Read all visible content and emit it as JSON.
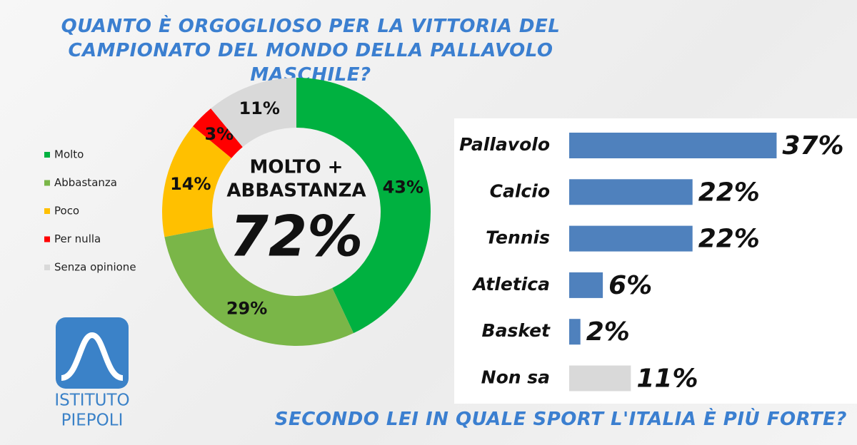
{
  "chart_data": [
    {
      "type": "pie",
      "title": "QUANTO È ORGOGLIOSO PER LA VITTORIA DEL CAMPIONATO DEL MONDO DELLA PALLAVOLO MASCHILE?",
      "categories": [
        "Molto",
        "Abbastanza",
        "Poco",
        "Per nulla",
        "Senza opinione"
      ],
      "values": [
        43,
        29,
        14,
        3,
        11
      ],
      "value_labels": [
        "43%",
        "29%",
        "14%",
        "3%",
        "11%"
      ],
      "colors": [
        "#00b140",
        "#7ab648",
        "#ffc000",
        "#ff0000",
        "#d9d9d9"
      ],
      "center_lines": [
        "MOLTO +",
        "ABBASTANZA"
      ],
      "center_value_label": "72%"
    },
    {
      "type": "bar",
      "orientation": "horizontal",
      "title": "SECONDO LEI IN QUALE SPORT L'ITALIA È PIÙ FORTE?",
      "categories": [
        "Pallavolo",
        "Calcio",
        "Tennis",
        "Atletica",
        "Basket",
        "Non sa"
      ],
      "values": [
        37,
        22,
        22,
        6,
        2,
        11
      ],
      "value_labels": [
        "37%",
        "22%",
        "22%",
        "6%",
        "2%",
        "11%"
      ],
      "colors": [
        "#4f81bd",
        "#4f81bd",
        "#4f81bd",
        "#4f81bd",
        "#4f81bd",
        "#d9d9d9"
      ]
    }
  ],
  "logo": {
    "line1": "ISTITUTO",
    "line2": "PIEPOLI"
  }
}
